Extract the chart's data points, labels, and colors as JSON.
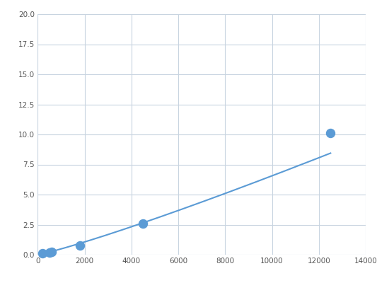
{
  "x": [
    200,
    500,
    600,
    1800,
    4500,
    12500
  ],
  "y": [
    0.1,
    0.2,
    0.25,
    0.75,
    2.6,
    10.1
  ],
  "line_color": "#5b9bd5",
  "marker_color": "#5b9bd5",
  "marker_size": 5,
  "xlim": [
    0,
    14000
  ],
  "ylim": [
    0,
    20.0
  ],
  "xticks": [
    0,
    2000,
    4000,
    6000,
    8000,
    10000,
    12000,
    14000
  ],
  "yticks": [
    0.0,
    2.5,
    5.0,
    7.5,
    10.0,
    12.5,
    15.0,
    17.5,
    20.0
  ],
  "grid_color": "#c8d4e0",
  "background_color": "#ffffff",
  "line_width": 1.5
}
